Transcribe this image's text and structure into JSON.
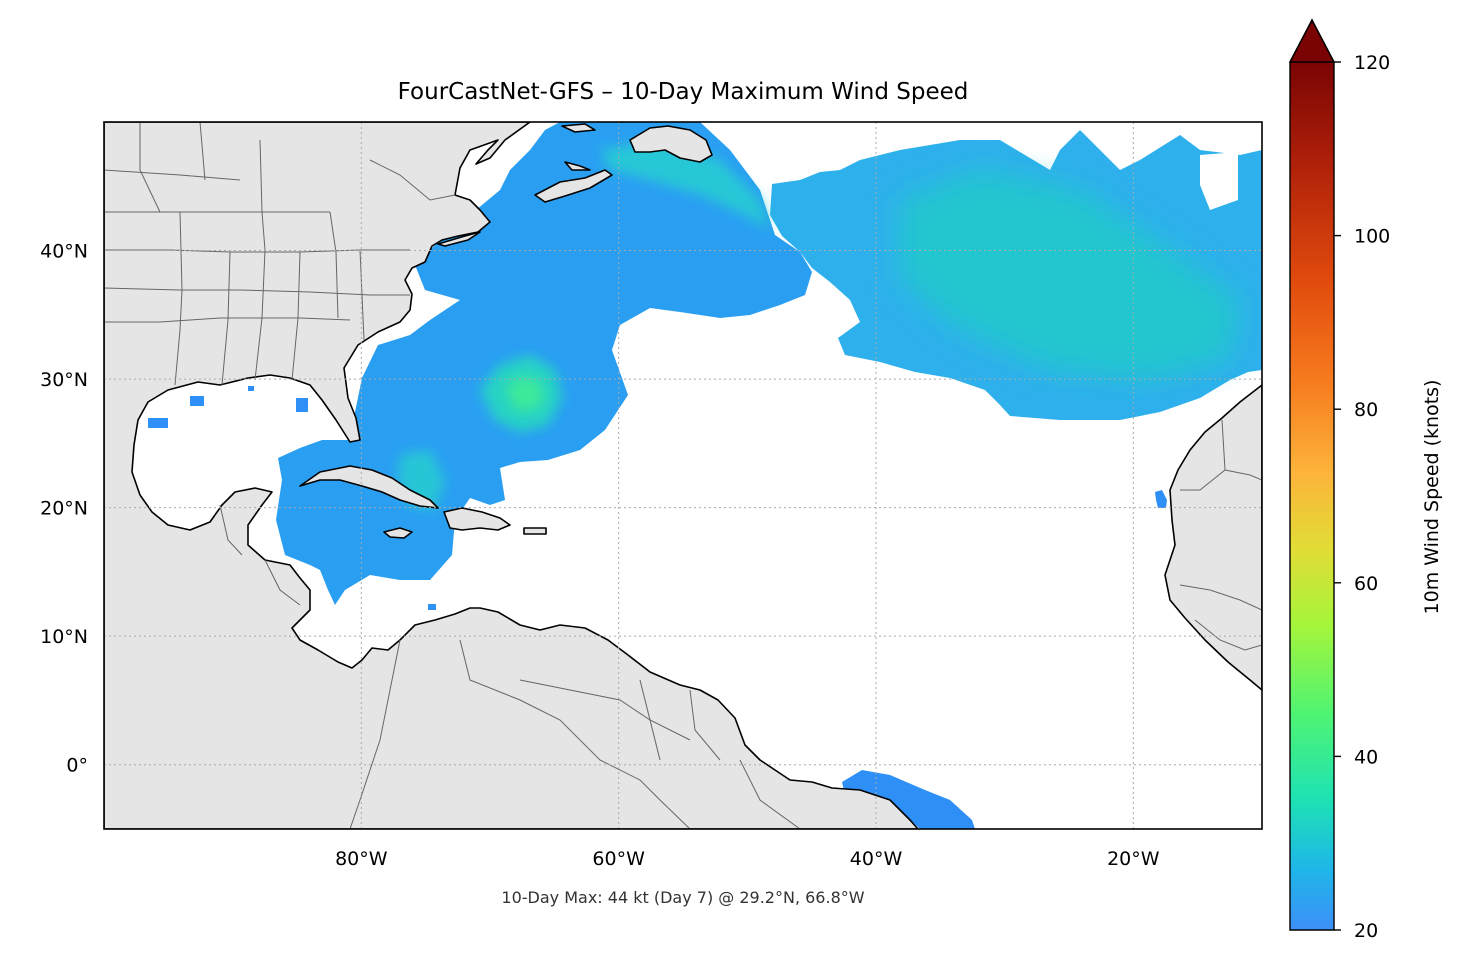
{
  "title": "FourCastNet-GFS – 10-Day Maximum Wind Speed",
  "footnote": "10-Day Max: 44 kt (Day 7) @ 29.2°N, 66.8°W",
  "map": {
    "lon_range": [
      -100,
      -10
    ],
    "lat_range": [
      -5,
      50
    ],
    "lon_ticks": [
      {
        "value": -80,
        "label": "80°W"
      },
      {
        "value": -60,
        "label": "60°W"
      },
      {
        "value": -40,
        "label": "40°W"
      },
      {
        "value": -20,
        "label": "20°W"
      }
    ],
    "lat_ticks": [
      {
        "value": 40,
        "label": "40°N"
      },
      {
        "value": 30,
        "label": "30°N"
      },
      {
        "value": 20,
        "label": "20°N"
      },
      {
        "value": 10,
        "label": "10°N"
      },
      {
        "value": 0,
        "label": "0°"
      }
    ],
    "gridlines": true,
    "land_color": "#e5e5e5",
    "ocean_color": "#ffffff",
    "coastline_color": "#000000",
    "border_color": "#666666"
  },
  "colorbar": {
    "label": "10m Wind Speed (knots)",
    "range": [
      20,
      120
    ],
    "extend": "max",
    "colormap": "turbo",
    "ticks": [
      {
        "value": 20,
        "label": "20"
      },
      {
        "value": 40,
        "label": "40"
      },
      {
        "value": 60,
        "label": "60"
      },
      {
        "value": 80,
        "label": "80"
      },
      {
        "value": 100,
        "label": "100"
      },
      {
        "value": 120,
        "label": "120"
      }
    ],
    "stops": [
      {
        "value": 20,
        "color": "#3d8ff7"
      },
      {
        "value": 27,
        "color": "#1fb6e8"
      },
      {
        "value": 35,
        "color": "#1de2b4"
      },
      {
        "value": 45,
        "color": "#50f472"
      },
      {
        "value": 55,
        "color": "#a4f53b"
      },
      {
        "value": 64,
        "color": "#e2dc36"
      },
      {
        "value": 73,
        "color": "#fdb23a"
      },
      {
        "value": 83,
        "color": "#f77c1f"
      },
      {
        "value": 95,
        "color": "#e04a0c"
      },
      {
        "value": 108,
        "color": "#b0210a"
      },
      {
        "value": 120,
        "color": "#7a0403"
      }
    ]
  },
  "max_point": {
    "value_kt": 44,
    "day": 7,
    "lat": 29.2,
    "lon": -66.8
  }
}
